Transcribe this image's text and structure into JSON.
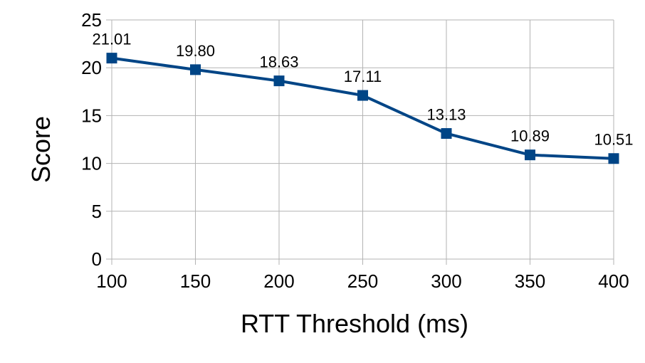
{
  "chart_data": {
    "type": "line",
    "x": [
      100,
      150,
      200,
      250,
      300,
      350,
      400
    ],
    "series": [
      {
        "values": [
          21.01,
          19.8,
          18.63,
          17.11,
          13.13,
          10.89,
          10.51
        ],
        "data_labels": [
          "21.01",
          "19.80",
          "18.63",
          "17.11",
          "13.13",
          "10.89",
          "10.51"
        ],
        "color": "#004586",
        "marker": "square"
      }
    ],
    "xlabel": "RTT Threshold (ms)",
    "ylabel": "Score",
    "xlim": [
      100,
      400
    ],
    "ylim": [
      0,
      25
    ],
    "x_ticks": [
      "100",
      "150",
      "200",
      "250",
      "300",
      "350",
      "400"
    ],
    "y_ticks": [
      "0",
      "5",
      "10",
      "15",
      "20",
      "25"
    ],
    "grid": true,
    "legend": "none"
  }
}
